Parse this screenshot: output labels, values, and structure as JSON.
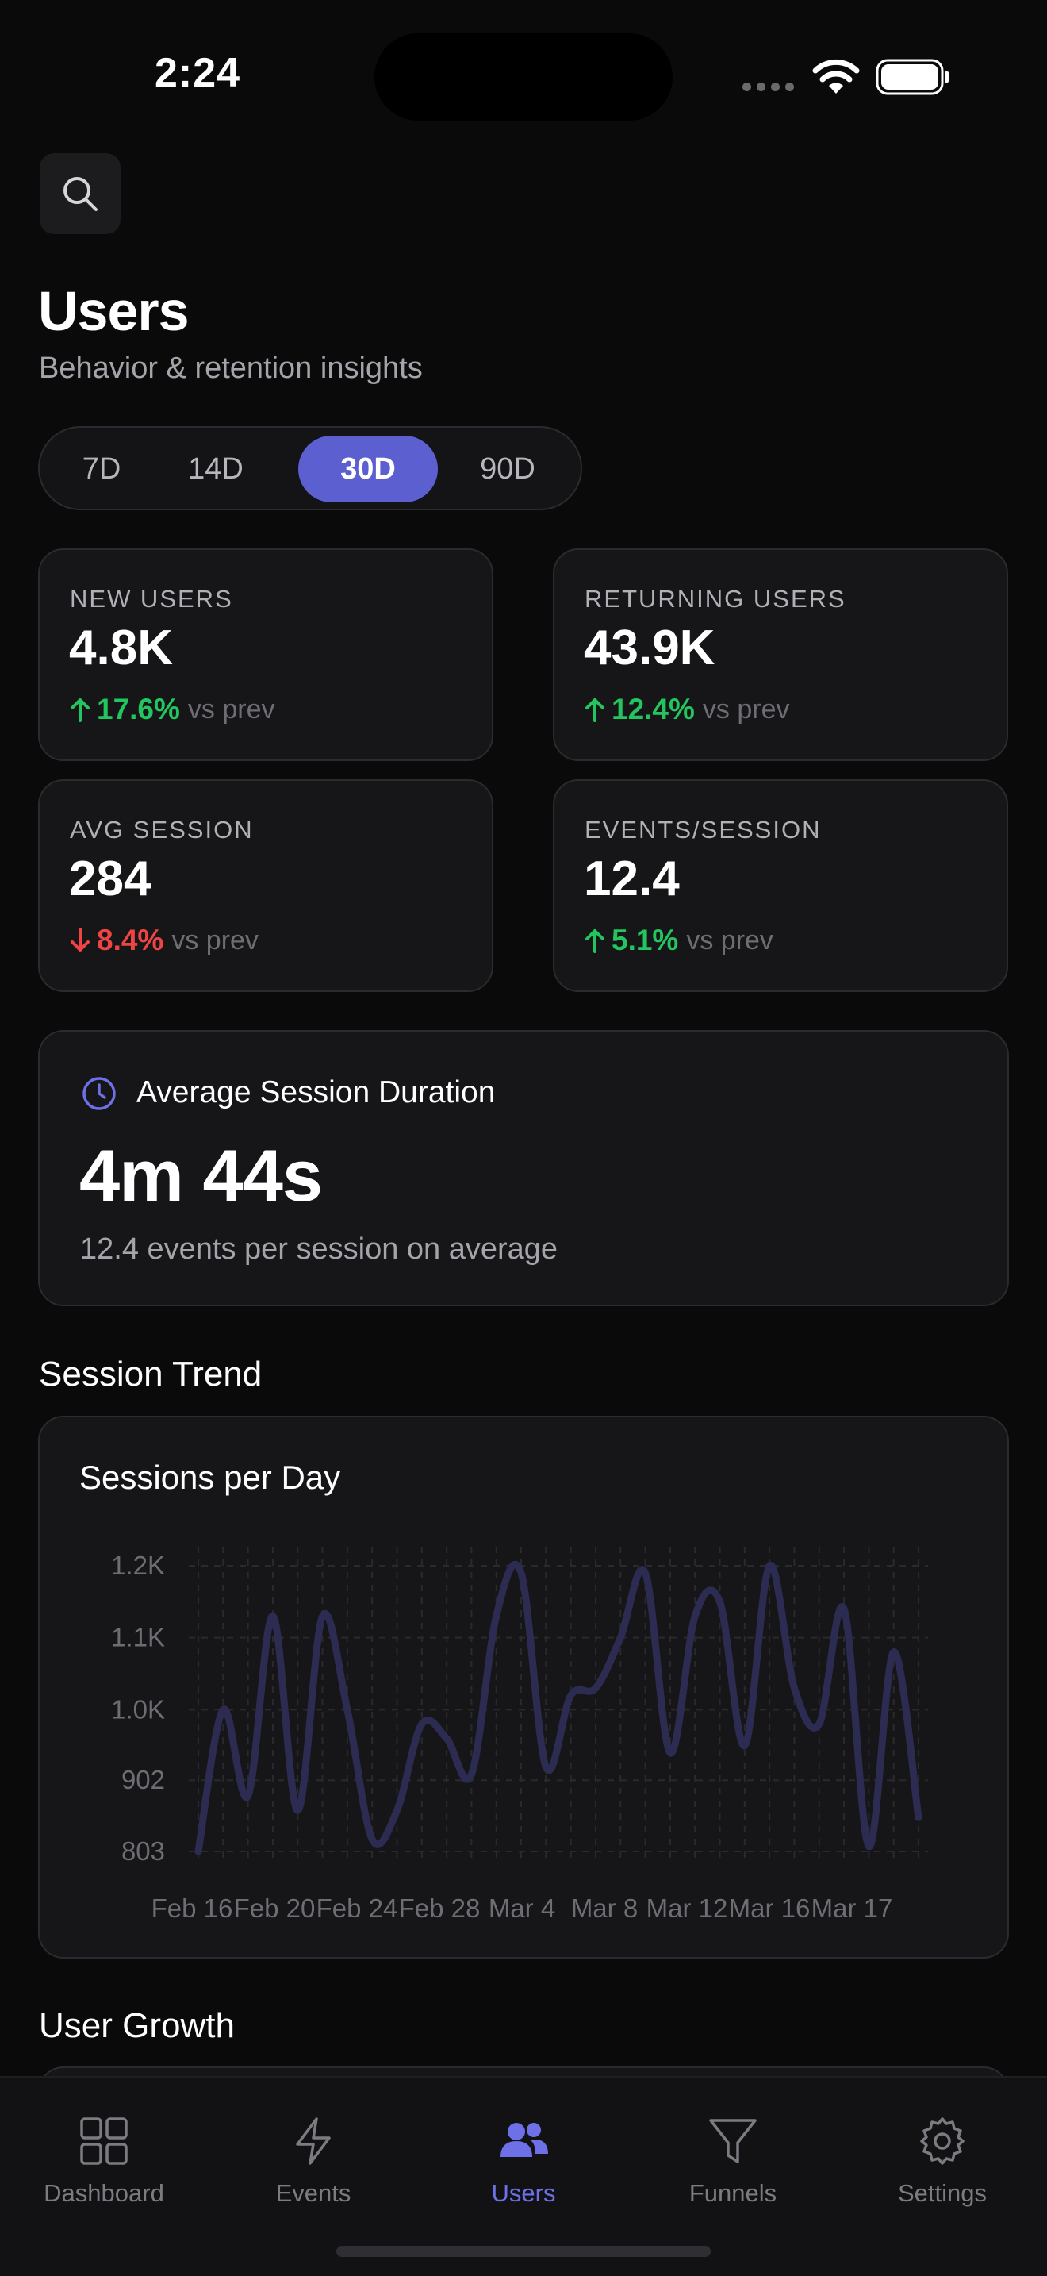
{
  "status_bar": {
    "time": "2:24"
  },
  "header": {
    "title": "Users",
    "subtitle": "Behavior & retention insights"
  },
  "range_selector": {
    "options": [
      "7D",
      "14D",
      "30D",
      "90D"
    ],
    "selected": "30D"
  },
  "metrics": [
    {
      "label": "NEW USERS",
      "value": "4.8K",
      "change": "17.6%",
      "direction": "up",
      "suffix": "vs prev"
    },
    {
      "label": "RETURNING USERS",
      "value": "43.9K",
      "change": "12.4%",
      "direction": "up",
      "suffix": "vs prev"
    },
    {
      "label": "AVG SESSION",
      "value": "284",
      "change": "8.4%",
      "direction": "down",
      "suffix": "vs prev"
    },
    {
      "label": "EVENTS/SESSION",
      "value": "12.4",
      "change": "5.1%",
      "direction": "up",
      "suffix": "vs prev"
    }
  ],
  "duration_card": {
    "title": "Average Session Duration",
    "value": "4m 44s",
    "subtitle": "12.4 events per session on average"
  },
  "sections": {
    "session_trend": "Session Trend",
    "user_growth": "User Growth"
  },
  "chart_data": {
    "type": "line",
    "title": "Sessions per Day",
    "xlabel": "",
    "ylabel": "",
    "y_ticks": [
      "1.2K",
      "1.1K",
      "1.0K",
      "902",
      "803"
    ],
    "y_tick_values": [
      1200,
      1100,
      1000,
      902,
      803
    ],
    "ylim": [
      803,
      1200
    ],
    "x_ticks": [
      "Feb 16",
      "Feb 20",
      "Feb 24",
      "Feb 28",
      "Mar 4",
      "Mar 8",
      "Mar 12",
      "Mar 16",
      "Mar 17"
    ],
    "series": [
      {
        "name": "Sessions",
        "color": "#2c2c52",
        "values": [
          803,
          1000,
          880,
          1130,
          860,
          1130,
          1000,
          820,
          860,
          980,
          960,
          910,
          1130,
          1190,
          920,
          1020,
          1030,
          1100,
          1190,
          940,
          1130,
          1150,
          950,
          1200,
          1030,
          980,
          1140,
          810,
          1080,
          850
        ]
      }
    ],
    "grid": true
  },
  "tab_bar": {
    "items": [
      {
        "label": "Dashboard",
        "icon": "grid-icon"
      },
      {
        "label": "Events",
        "icon": "bolt-icon"
      },
      {
        "label": "Users",
        "icon": "users-icon"
      },
      {
        "label": "Funnels",
        "icon": "funnel-icon"
      },
      {
        "label": "Settings",
        "icon": "gear-icon"
      }
    ],
    "active": "Users"
  },
  "colors": {
    "accent": "#5c5fcf",
    "up": "#22c55e",
    "down": "#ef4444",
    "background": "#0a0a0b",
    "card": "#161618"
  }
}
